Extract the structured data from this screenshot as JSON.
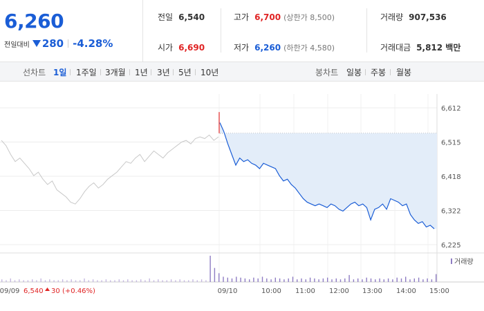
{
  "summary": {
    "current_price": "6,260",
    "change_label": "전일대비",
    "change_value": "280",
    "change_rate": "-4.28%",
    "prev_close_label": "전일",
    "prev_close": "6,540",
    "high_label": "고가",
    "high": "6,700",
    "upper_limit": "(상한가 8,500)",
    "volume_label": "거래량",
    "volume": "907,536",
    "open_label": "시가",
    "open": "6,690",
    "low_label": "저가",
    "low": "6,260",
    "lower_limit": "(하한가 4,580)",
    "amount_label": "거래대금",
    "amount": "5,812 백만"
  },
  "toolbar": {
    "line_label": "선차트",
    "line_periods": [
      "1일",
      "1주일",
      "3개월",
      "1년",
      "3년",
      "5년",
      "10년"
    ],
    "active_period": "1일",
    "candle_label": "봉차트",
    "candle_periods": [
      "일봉",
      "주봉",
      "월봉"
    ]
  },
  "colors": {
    "up": "#e02424",
    "down": "#1a5dd6",
    "fill": "#e3edf9",
    "prev_line": "#c8c8c8"
  },
  "chart_data": {
    "type": "line",
    "ylim": [
      6225,
      6612
    ],
    "y_ticks": [
      "6,612",
      "6,515",
      "6,418",
      "6,322",
      "6,225"
    ],
    "x_ticks": [
      "09/10",
      "10:00",
      "11:00",
      "12:00",
      "13:00",
      "14:00",
      "15:00"
    ],
    "prev_day_label": "09/09",
    "prev_day_close": "6,540",
    "prev_day_change": "30",
    "prev_day_rate": "(+0.46%)",
    "volume_legend": "거래량",
    "series": [
      {
        "name": "",
        "values": [
          6520,
          6505,
          6480,
          6460,
          6470,
          6455,
          6440,
          6420,
          6430,
          6410,
          6395,
          6405,
          6380,
          6370,
          6360,
          6345,
          6340,
          6355,
          6375,
          6390,
          6400,
          6385,
          6395,
          6410,
          6420,
          6430,
          6445,
          6460,
          6455,
          6470,
          6480,
          6460,
          6475,
          6490,
          6480,
          6470,
          6485,
          6495,
          6505,
          6515,
          6520,
          6510,
          6525,
          6530,
          6525,
          6535,
          6520,
          6530
        ]
      },
      {
        "name": "",
        "values": [
          6570,
          6545,
          6510,
          6480,
          6450,
          6470,
          6460,
          6465,
          6455,
          6450,
          6440,
          6455,
          6450,
          6445,
          6440,
          6420,
          6405,
          6410,
          6395,
          6385,
          6370,
          6355,
          6345,
          6340,
          6335,
          6340,
          6335,
          6330,
          6340,
          6335,
          6325,
          6320,
          6330,
          6340,
          6345,
          6335,
          6340,
          6330,
          6295,
          6325,
          6330,
          6340,
          6325,
          6355,
          6350,
          6345,
          6335,
          6340,
          6310,
          6295,
          6285,
          6290,
          6275,
          6280,
          6270
        ]
      }
    ],
    "volume": [
      3,
      2,
      4,
      2,
      3,
      2,
      2,
      3,
      2,
      4,
      2,
      3,
      2,
      2,
      3,
      2,
      3,
      2,
      2,
      4,
      2,
      3,
      2,
      2,
      3,
      2,
      2,
      3,
      2,
      3,
      2,
      2,
      3,
      2,
      4,
      2,
      3,
      2,
      2,
      3,
      2,
      3,
      2,
      2,
      3,
      2,
      3,
      2,
      30,
      16,
      10,
      6,
      5,
      4,
      6,
      5,
      4,
      3,
      5,
      4,
      6,
      4,
      3,
      5,
      4,
      3,
      4,
      6,
      3,
      4,
      3,
      5,
      4,
      3,
      4,
      5,
      3,
      4,
      3,
      4,
      8,
      3,
      4,
      3,
      5,
      4,
      3,
      4,
      3,
      4,
      3,
      5,
      4,
      6,
      3,
      4,
      5,
      3,
      4,
      3,
      9
    ]
  }
}
